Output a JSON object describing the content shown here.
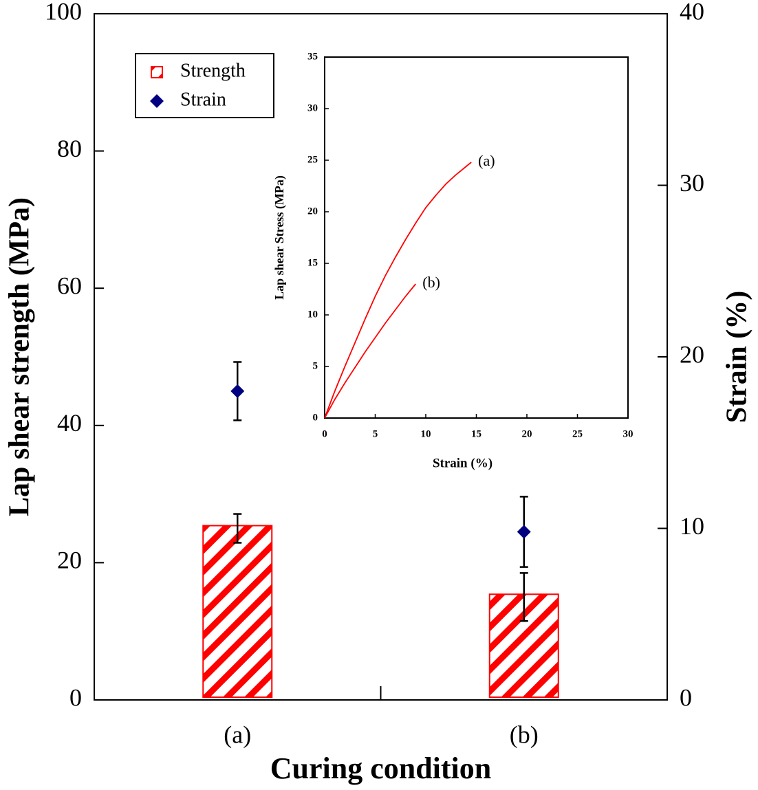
{
  "chart_data": [
    {
      "type": "bar",
      "xlabel": "Curing condition",
      "ylabel": "Lap shear strength (MPa)",
      "y2label": "Strain (%)",
      "categories": [
        "(a)",
        "(b)"
      ],
      "ylim": [
        0,
        100
      ],
      "yticks": [
        0,
        20,
        40,
        60,
        80,
        100
      ],
      "y2lim": [
        0,
        40
      ],
      "y2ticks": [
        0,
        10,
        20,
        30,
        40
      ],
      "legend": "upper left",
      "series": [
        {
          "name": "Strength",
          "color": "#ff0000",
          "values": [
            25,
            15
          ],
          "errors": [
            2.1,
            3.5
          ]
        },
        {
          "name": "Strain",
          "color": "#000080",
          "values": [
            18,
            9.8
          ],
          "errors": [
            1.7,
            2.05
          ],
          "axis": "y2"
        }
      ]
    },
    {
      "type": "line",
      "xlabel": "Strain (%)",
      "ylabel": "Lap shear Stress (MPa)",
      "xlim": [
        0,
        30
      ],
      "xticks": [
        0,
        5,
        10,
        15,
        20,
        25,
        30
      ],
      "ylim": [
        0,
        35
      ],
      "yticks": [
        0,
        5,
        10,
        15,
        20,
        25,
        30,
        35
      ],
      "series": [
        {
          "name": "(a)",
          "color": "#ff0000",
          "x": [
            0,
            1,
            2,
            3,
            4,
            5,
            6,
            7,
            8,
            9,
            10,
            11,
            12,
            13,
            14,
            14.5
          ],
          "values": [
            0,
            2.6,
            5,
            7.3,
            9.6,
            11.8,
            13.8,
            15.6,
            17.3,
            18.9,
            20.4,
            21.6,
            22.7,
            23.6,
            24.4,
            24.8
          ]
        },
        {
          "name": "(b)",
          "color": "#ff0000",
          "x": [
            0,
            1,
            2,
            3,
            4,
            5,
            6,
            7,
            8,
            9
          ],
          "values": [
            0,
            1.8,
            3.4,
            4.9,
            6.4,
            7.8,
            9.2,
            10.5,
            11.8,
            13.0
          ]
        }
      ]
    }
  ]
}
